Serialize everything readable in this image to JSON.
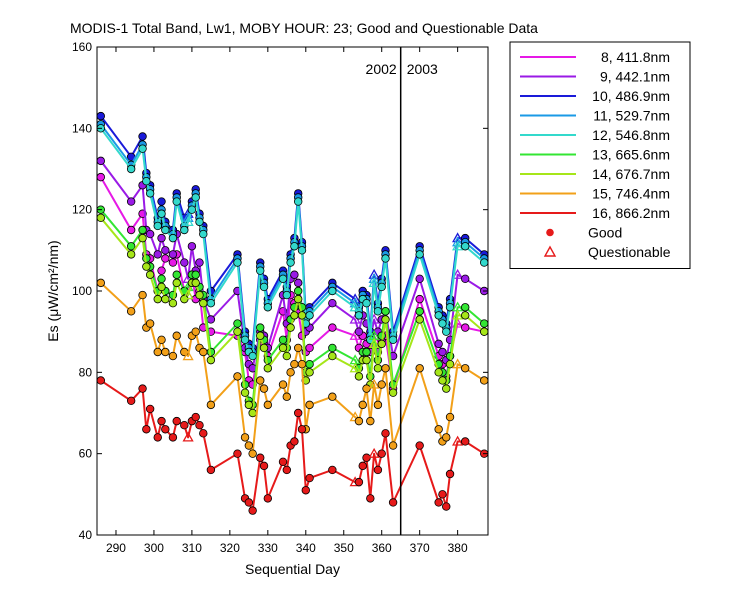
{
  "chart_data": {
    "type": "line",
    "title": "MODIS-1 Total Band,  Lw1, MOBY HOUR: 23;  Good and Questionable Data",
    "xlabel": "Sequential Day",
    "ylabel": "Es (μW/cm²/nm)",
    "xlim": [
      285,
      388
    ],
    "ylim": [
      40,
      160
    ],
    "xticks": [
      290,
      300,
      310,
      320,
      330,
      340,
      350,
      360,
      370,
      380
    ],
    "yticks": [
      40,
      60,
      80,
      100,
      120,
      140,
      160
    ],
    "grid": false,
    "legend_position": "outside-right-top",
    "year_divider": {
      "x": 365,
      "left_label": "2002",
      "right_label": "2003"
    },
    "x": [
      286,
      294,
      297,
      298,
      299,
      301,
      302,
      303,
      305,
      306,
      308,
      309,
      310,
      311,
      312,
      313,
      315,
      322,
      324,
      325,
      326,
      328,
      329,
      330,
      334,
      335,
      336,
      337,
      338,
      339,
      340,
      341,
      347,
      353,
      354,
      355,
      356,
      357,
      358,
      359,
      360,
      361,
      363,
      370,
      375,
      376,
      377,
      378,
      380,
      382,
      387
    ],
    "questionable_x": [
      309,
      353,
      358,
      380
    ],
    "series": [
      {
        "name": "8, 411.8nm",
        "color": "#e619e6",
        "values": [
          128,
          115,
          119,
          109,
          108,
          100,
          105,
          108,
          107,
          109,
          100,
          99,
          104,
          98,
          100,
          91,
          90,
          89,
          85,
          78,
          77,
          88,
          87,
          84,
          95,
          88,
          99,
          97,
          95,
          89,
          85,
          86,
          91,
          89,
          86,
          89,
          87,
          85,
          88,
          85,
          88,
          89,
          76,
          98,
          84,
          82,
          79,
          84,
          92,
          91,
          90
        ]
      },
      {
        "name": "9, 442.1nm",
        "color": "#9a1ae6",
        "values": [
          132,
          122,
          126,
          115,
          114,
          109,
          113,
          110,
          109,
          114,
          107,
          103,
          111,
          105,
          107,
          98,
          93,
          100,
          86,
          82,
          81,
          90,
          89,
          86,
          99,
          92,
          103,
          104,
          102,
          96,
          90,
          91,
          97,
          93,
          90,
          94,
          92,
          88,
          93,
          90,
          93,
          95,
          84,
          103,
          87,
          85,
          83,
          88,
          104,
          103,
          100
        ]
      },
      {
        "name": "10, 486.9nm",
        "color": "#1a1ad9",
        "values": [
          143,
          133,
          138,
          129,
          126,
          118,
          122,
          117,
          115,
          124,
          118,
          119,
          122,
          125,
          119,
          116,
          100,
          109,
          90,
          87,
          86,
          107,
          103,
          98,
          105,
          101,
          109,
          113,
          124,
          112,
          94,
          96,
          102,
          98,
          96,
          100,
          99,
          90,
          104,
          97,
          103,
          110,
          90,
          111,
          96,
          94,
          92,
          98,
          113,
          113,
          109
        ]
      },
      {
        "name": "11, 529.7nm",
        "color": "#1a9ae6",
        "values": [
          141,
          131,
          136,
          128,
          125,
          117,
          120,
          116,
          114,
          123,
          116,
          118,
          121,
          124,
          118,
          115,
          98,
          108,
          89,
          86,
          85,
          106,
          102,
          97,
          104,
          100,
          108,
          112,
          123,
          111,
          93,
          95,
          101,
          97,
          95,
          99,
          98,
          89,
          103,
          96,
          102,
          109,
          89,
          110,
          95,
          93,
          91,
          97,
          112,
          112,
          108
        ]
      },
      {
        "name": "12, 546.8nm",
        "color": "#33d9cc",
        "values": [
          140,
          130,
          135,
          127,
          124,
          116,
          119,
          115,
          113,
          122,
          115,
          117,
          120,
          123,
          117,
          114,
          97,
          107,
          88,
          85,
          84,
          105,
          101,
          96,
          103,
          99,
          107,
          111,
          122,
          110,
          92,
          94,
          100,
          96,
          94,
          98,
          97,
          88,
          102,
          95,
          101,
          108,
          88,
          109,
          94,
          92,
          90,
          96,
          111,
          111,
          107
        ]
      },
      {
        "name": "13, 665.6nm",
        "color": "#33e633",
        "values": [
          120,
          111,
          115,
          108,
          106,
          100,
          103,
          100,
          99,
          104,
          100,
          101,
          104,
          104,
          101,
          99,
          85,
          92,
          77,
          73,
          72,
          91,
          88,
          83,
          88,
          86,
          93,
          96,
          100,
          96,
          80,
          82,
          86,
          83,
          81,
          85,
          85,
          79,
          89,
          83,
          89,
          95,
          77,
          95,
          82,
          80,
          78,
          84,
          96,
          96,
          92
        ]
      },
      {
        "name": "14, 676.7nm",
        "color": "#a6e619",
        "values": [
          118,
          109,
          113,
          106,
          104,
          98,
          101,
          98,
          97,
          102,
          98,
          99,
          102,
          102,
          99,
          97,
          83,
          90,
          75,
          72,
          70,
          89,
          86,
          81,
          86,
          84,
          91,
          94,
          98,
          94,
          78,
          80,
          84,
          81,
          79,
          83,
          83,
          77,
          87,
          81,
          87,
          93,
          75,
          93,
          80,
          78,
          76,
          82,
          94,
          94,
          90
        ]
      },
      {
        "name": "15, 746.4nm",
        "color": "#f2a019",
        "values": [
          102,
          95,
          99,
          91,
          92,
          85,
          88,
          85,
          84,
          89,
          85,
          84,
          89,
          90,
          86,
          85,
          72,
          79,
          64,
          62,
          60,
          78,
          76,
          72,
          77,
          74,
          80,
          82,
          86,
          82,
          66,
          72,
          74,
          69,
          68,
          72,
          76,
          68,
          77,
          72,
          77,
          81,
          62,
          81,
          66,
          63,
          64,
          69,
          82,
          81,
          78
        ]
      },
      {
        "name": "16, 866.2nm",
        "color": "#e61a1a",
        "values": [
          78,
          73,
          76,
          66,
          71,
          64,
          68,
          66,
          64,
          68,
          67,
          64,
          68,
          69,
          67,
          65,
          56,
          60,
          49,
          48,
          46,
          59,
          57,
          49,
          58,
          56,
          62,
          63,
          70,
          66,
          51,
          54,
          56,
          53,
          53,
          57,
          59,
          49,
          60,
          56,
          60,
          65,
          48,
          62,
          48,
          50,
          47,
          55,
          63,
          63,
          60
        ]
      }
    ],
    "legend_markers": [
      {
        "label": "Good",
        "symbol": "filled-circle",
        "color": "#e61a1a"
      },
      {
        "label": "Questionable",
        "symbol": "open-triangle",
        "color": "#e61a1a"
      }
    ]
  }
}
